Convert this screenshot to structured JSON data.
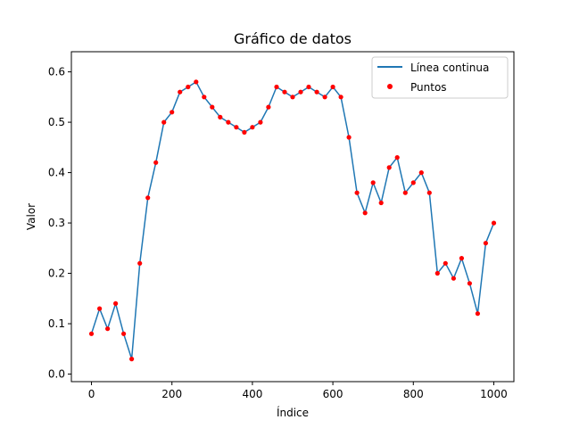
{
  "chart_data": {
    "type": "line",
    "title": "Gráfico de datos",
    "xlabel": "Índice",
    "ylabel": "Valor",
    "xlim": [
      -50,
      1050
    ],
    "ylim": [
      -0.015,
      0.64
    ],
    "xticks": [
      0,
      200,
      400,
      600,
      800,
      1000
    ],
    "yticks": [
      0.0,
      0.1,
      0.2,
      0.3,
      0.4,
      0.5,
      0.6
    ],
    "xtick_labels": [
      "0",
      "200",
      "400",
      "600",
      "800",
      "1000"
    ],
    "ytick_labels": [
      "0.0",
      "0.1",
      "0.2",
      "0.3",
      "0.4",
      "0.5",
      "0.6"
    ],
    "grid": false,
    "legend_position": "top-right",
    "series": [
      {
        "name": "Línea continua",
        "kind": "line",
        "color": "#1f77b4"
      },
      {
        "name": "Puntos",
        "kind": "scatter",
        "color": "#ff0000"
      }
    ],
    "x": [
      0,
      20,
      40,
      60,
      80,
      100,
      120,
      140,
      160,
      180,
      200,
      220,
      240,
      260,
      280,
      300,
      320,
      340,
      360,
      380,
      400,
      420,
      440,
      460,
      480,
      500,
      520,
      540,
      560,
      580,
      600,
      620,
      640,
      660,
      680,
      700,
      720,
      740,
      760,
      780,
      800,
      820,
      840,
      860,
      880,
      900,
      920,
      940,
      960,
      980,
      1000
    ],
    "values": [
      0.08,
      0.13,
      0.09,
      0.14,
      0.08,
      0.03,
      0.22,
      0.35,
      0.42,
      0.5,
      0.52,
      0.56,
      0.57,
      0.58,
      0.55,
      0.53,
      0.51,
      0.5,
      0.49,
      0.48,
      0.49,
      0.5,
      0.53,
      0.57,
      0.56,
      0.55,
      0.56,
      0.57,
      0.56,
      0.55,
      0.57,
      0.55,
      0.47,
      0.36,
      0.32,
      0.38,
      0.34,
      0.41,
      0.43,
      0.36,
      0.38,
      0.4,
      0.36,
      0.2,
      0.22,
      0.19,
      0.23,
      0.18,
      0.12,
      0.26,
      0.3
    ]
  }
}
